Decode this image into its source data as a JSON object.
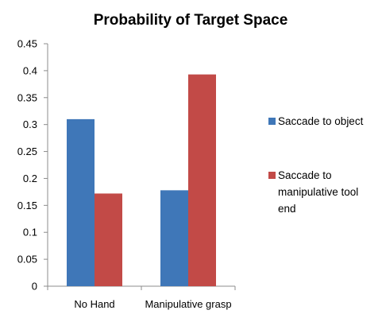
{
  "chart_data": {
    "type": "bar",
    "title": "Probability of Target Space",
    "xlabel": "",
    "ylabel": "",
    "categories": [
      "No Hand",
      "Manipulative grasp"
    ],
    "series": [
      {
        "name": "Saccade to object",
        "values": [
          0.31,
          0.178
        ],
        "color": "#3f77b8"
      },
      {
        "name": "Saccade to manipulative tool end",
        "values": [
          0.172,
          0.393
        ],
        "color": "#c24a47"
      }
    ],
    "legend_lines": [
      [
        "Saccade to object"
      ],
      [
        "Saccade to",
        "manipulative tool",
        "end"
      ]
    ],
    "ylim": [
      0,
      0.45
    ],
    "yticks": [
      "0",
      "0.05",
      "0.1",
      "0.15",
      "0.2",
      "0.25",
      "0.3",
      "0.35",
      "0.4",
      "0.45"
    ],
    "legend_position": "right",
    "grid": false
  }
}
